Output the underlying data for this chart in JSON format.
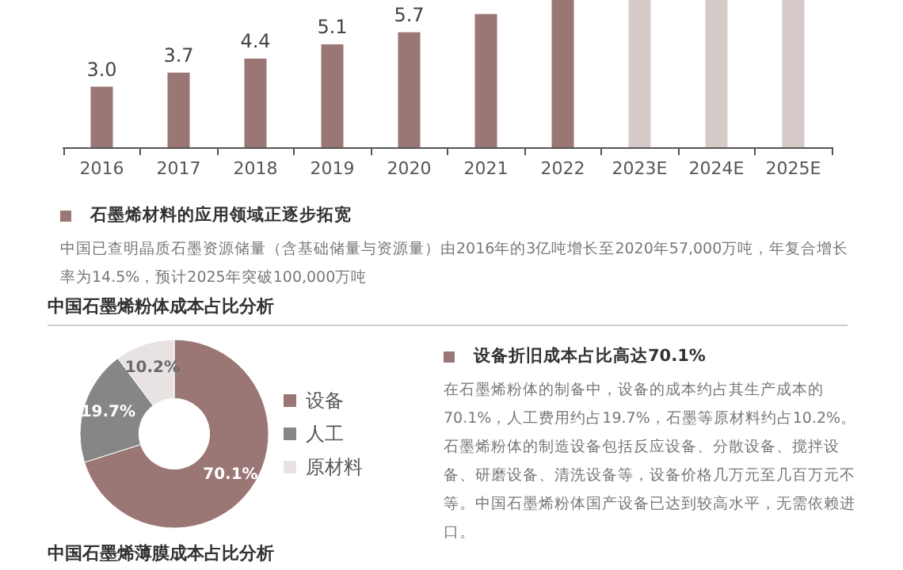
{
  "chart_data": [
    {
      "type": "bar",
      "categories": [
        "2016",
        "2017",
        "2018",
        "2019",
        "2020",
        "2021",
        "2022",
        "2023E",
        "2024E",
        "2025E"
      ],
      "values": [
        3.0,
        3.7,
        4.4,
        5.1,
        5.7,
        6.6,
        7.3,
        7.3,
        7.3,
        7.3
      ],
      "colors": [
        "#9a7674",
        "#9a7674",
        "#9a7674",
        "#9a7674",
        "#9a7674",
        "#9a7674",
        "#9a7674",
        "#d6cac9",
        "#d6cac9",
        "#d6cac9"
      ],
      "value_labels": [
        "3.0",
        "3.7",
        "4.4",
        "5.1",
        "5.7",
        null,
        null,
        null,
        null,
        null
      ],
      "ylim": [
        0,
        7.3
      ],
      "tick_labels": "x",
      "grid": false,
      "legend": false
    },
    {
      "type": "other",
      "title": "石墨烯材料的应用领域正逐步拓宽",
      "annotations": [
        "中国已查明晶质石墨资源储量（含基础储量与资源量）由2016年的3亿吨增长至2020年57,000万吨，年复合增长率为14.5%，预计2025年突破100,000万吨"
      ]
    },
    {
      "type": "donut",
      "title": "中国石墨烯粉体成本占比分析",
      "categories": [
        "设备",
        "人工",
        "原材料"
      ],
      "values": [
        70.1,
        19.7,
        10.2
      ],
      "colors": [
        "#9a7674",
        "#868686",
        "#e8e3e2"
      ],
      "value_labels": [
        "70.1%",
        "19.7%",
        "10.2%"
      ],
      "legend": "right"
    },
    {
      "type": "other",
      "title": "设备折旧成本占比高达70.1%",
      "annotations": [
        "在石墨烯粉体的制备中，设备的成本约占其生产成本的70.1%，人工费用约占19.7%，石墨等原材料约占10.2%。石墨烯粉体的制造设备包括反应设备、分散设备、搅拌设备、研磨设备、清洗设备等，设备价格几万元至几百万元不等。中国石墨烯粉体国产设备已达到较高水平，无需依赖进口。"
      ]
    },
    {
      "type": "other",
      "title": "中国石墨烯薄膜成本占比分析"
    }
  ]
}
